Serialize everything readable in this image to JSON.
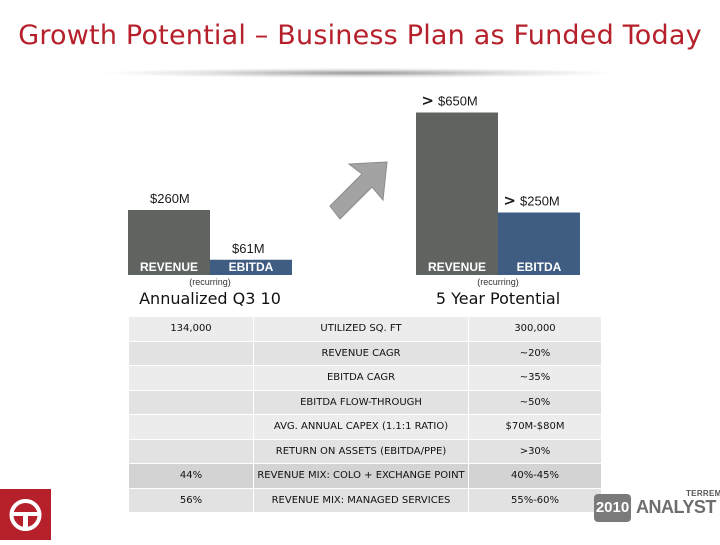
{
  "title": "Growth Potential – Business Plan as Funded Today",
  "chart_data": {
    "type": "bar",
    "categories": [
      "Annualized Q3 10",
      "5 Year Potential"
    ],
    "series": [
      {
        "name": "REVENUE",
        "values": [
          260,
          650
        ],
        "labels": [
          "$260M",
          "$650M"
        ],
        "color": "#5f6461"
      },
      {
        "name": "EBITDA",
        "values": [
          61,
          250
        ],
        "labels": [
          "$61M",
          "$250M"
        ],
        "color": "#3f5c82"
      }
    ],
    "value_prefix": [
      "",
      ">"
    ],
    "recurring_note": "(recurring)",
    "ylim": [
      0,
      700
    ],
    "legend": "none",
    "grid": false
  },
  "table": {
    "rows": [
      {
        "left": "134,000",
        "metric": "UTILIZED SQ. FT",
        "right": "300,000"
      },
      {
        "left": "",
        "metric": "REVENUE CAGR",
        "right": "~20%"
      },
      {
        "left": "",
        "metric": "EBITDA CAGR",
        "right": "~35%"
      },
      {
        "left": "",
        "metric": "EBITDA FLOW-THROUGH",
        "right": "~50%"
      },
      {
        "left": "",
        "metric": "AVG. ANNUAL  CAPEX (1.1:1 RATIO)",
        "right": "$70M-$80M"
      },
      {
        "left": "",
        "metric": "RETURN ON ASSETS (EBITDA/PPE)",
        "right": ">30%"
      },
      {
        "left": "44%",
        "metric": "REVENUE MIX: COLO + EXCHANGE POINT",
        "right": "40%-45%"
      },
      {
        "left": "56%",
        "metric": "REVENUE MIX: MANAGED SERVICES",
        "right": "55%-60%"
      }
    ]
  },
  "footer": {
    "year": "2010",
    "brand": "TERREMARK",
    "event": "ANALYST DAY"
  },
  "colors": {
    "title": "#b5202a",
    "revenue": "#5f6461",
    "ebitda": "#3f5c82",
    "arrow": "#a3a3a3"
  }
}
